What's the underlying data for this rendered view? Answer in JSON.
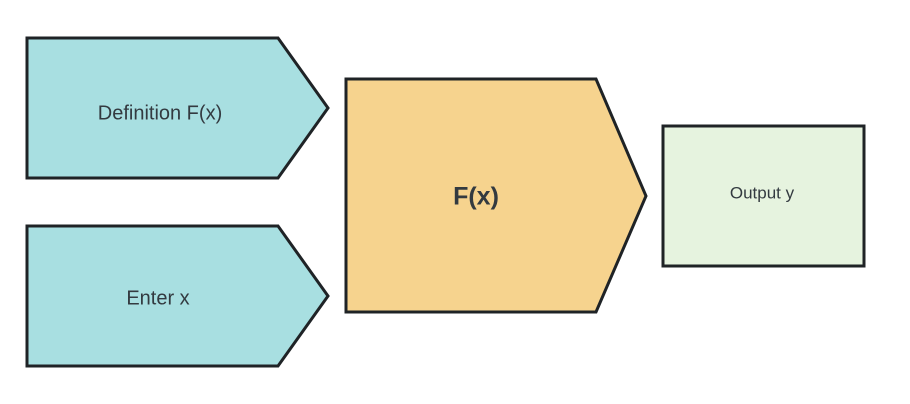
{
  "diagram": {
    "nodes": {
      "definition": {
        "label": "Definition F(x)",
        "fill": "#a8dfe1",
        "stroke": "#1f2326"
      },
      "enter_x": {
        "label": "Enter x",
        "fill": "#a8dfe1",
        "stroke": "#1f2326"
      },
      "function": {
        "label": "F(x)",
        "fill": "#f6d38e",
        "stroke": "#1f2326"
      },
      "output": {
        "label": "Output y",
        "fill": "#e6f3df",
        "stroke": "#1f2326"
      }
    }
  }
}
